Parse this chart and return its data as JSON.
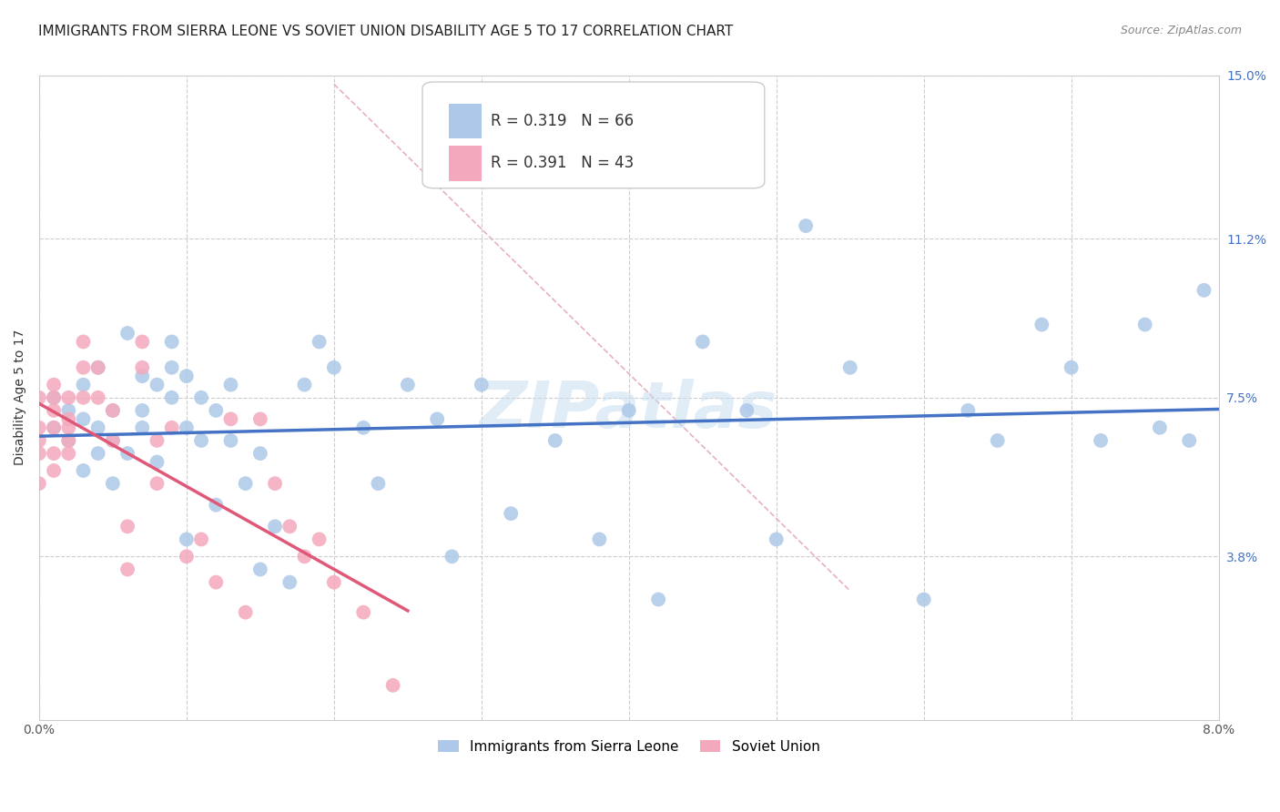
{
  "title": "IMMIGRANTS FROM SIERRA LEONE VS SOVIET UNION DISABILITY AGE 5 TO 17 CORRELATION CHART",
  "source": "Source: ZipAtlas.com",
  "ylabel": "Disability Age 5 to 17",
  "xlim": [
    0.0,
    0.08
  ],
  "ylim": [
    0.0,
    0.15
  ],
  "xticks": [
    0.0,
    0.01,
    0.02,
    0.03,
    0.04,
    0.05,
    0.06,
    0.07,
    0.08
  ],
  "xticklabels": [
    "0.0%",
    "",
    "",
    "",
    "",
    "",
    "",
    "",
    "8.0%"
  ],
  "ytick_positions": [
    0.038,
    0.075,
    0.112,
    0.15
  ],
  "ytick_labels": [
    "3.8%",
    "7.5%",
    "11.2%",
    "15.0%"
  ],
  "sierra_leone_color": "#adc8e8",
  "soviet_union_color": "#f4a8bc",
  "sierra_leone_line_color": "#4472c4",
  "soviet_union_line_color": "#e05878",
  "legend_R_sierra": "0.319",
  "legend_N_sierra": "66",
  "legend_R_soviet": "0.391",
  "legend_N_soviet": "43",
  "legend_label_sierra": "Immigrants from Sierra Leone",
  "legend_label_soviet": "Soviet Union",
  "watermark": "ZIPatlas",
  "sl_x": [
    0.001,
    0.001,
    0.002,
    0.002,
    0.003,
    0.003,
    0.003,
    0.004,
    0.004,
    0.004,
    0.005,
    0.005,
    0.005,
    0.006,
    0.006,
    0.007,
    0.007,
    0.007,
    0.008,
    0.008,
    0.009,
    0.009,
    0.009,
    0.01,
    0.01,
    0.01,
    0.011,
    0.011,
    0.012,
    0.012,
    0.013,
    0.013,
    0.014,
    0.015,
    0.015,
    0.016,
    0.017,
    0.018,
    0.019,
    0.02,
    0.022,
    0.023,
    0.025,
    0.027,
    0.028,
    0.03,
    0.032,
    0.035,
    0.038,
    0.04,
    0.042,
    0.045,
    0.048,
    0.05,
    0.052,
    0.055,
    0.06,
    0.063,
    0.065,
    0.068,
    0.07,
    0.072,
    0.075,
    0.076,
    0.078,
    0.079
  ],
  "sl_y": [
    0.068,
    0.075,
    0.065,
    0.072,
    0.058,
    0.07,
    0.078,
    0.062,
    0.068,
    0.082,
    0.055,
    0.065,
    0.072,
    0.09,
    0.062,
    0.072,
    0.08,
    0.068,
    0.06,
    0.078,
    0.082,
    0.088,
    0.075,
    0.068,
    0.08,
    0.042,
    0.075,
    0.065,
    0.072,
    0.05,
    0.065,
    0.078,
    0.055,
    0.035,
    0.062,
    0.045,
    0.032,
    0.078,
    0.088,
    0.082,
    0.068,
    0.055,
    0.078,
    0.07,
    0.038,
    0.078,
    0.048,
    0.065,
    0.042,
    0.072,
    0.028,
    0.088,
    0.072,
    0.042,
    0.115,
    0.082,
    0.028,
    0.072,
    0.065,
    0.092,
    0.082,
    0.065,
    0.092,
    0.068,
    0.065,
    0.1
  ],
  "su_x": [
    0.0,
    0.0,
    0.0,
    0.0,
    0.0,
    0.001,
    0.001,
    0.001,
    0.001,
    0.001,
    0.001,
    0.002,
    0.002,
    0.002,
    0.002,
    0.002,
    0.003,
    0.003,
    0.003,
    0.004,
    0.004,
    0.005,
    0.005,
    0.006,
    0.006,
    0.007,
    0.007,
    0.008,
    0.008,
    0.009,
    0.01,
    0.011,
    0.012,
    0.013,
    0.014,
    0.015,
    0.016,
    0.017,
    0.018,
    0.019,
    0.02,
    0.022,
    0.024
  ],
  "su_y": [
    0.055,
    0.062,
    0.065,
    0.068,
    0.075,
    0.062,
    0.068,
    0.072,
    0.058,
    0.075,
    0.078,
    0.065,
    0.07,
    0.075,
    0.062,
    0.068,
    0.082,
    0.088,
    0.075,
    0.082,
    0.075,
    0.065,
    0.072,
    0.045,
    0.035,
    0.082,
    0.088,
    0.065,
    0.055,
    0.068,
    0.038,
    0.042,
    0.032,
    0.07,
    0.025,
    0.07,
    0.055,
    0.045,
    0.038,
    0.042,
    0.032,
    0.025,
    0.008
  ],
  "ref_line_x": [
    0.02,
    0.055
  ],
  "ref_line_y": [
    0.148,
    0.03
  ],
  "title_fontsize": 11,
  "axis_label_fontsize": 10,
  "tick_fontsize": 10
}
